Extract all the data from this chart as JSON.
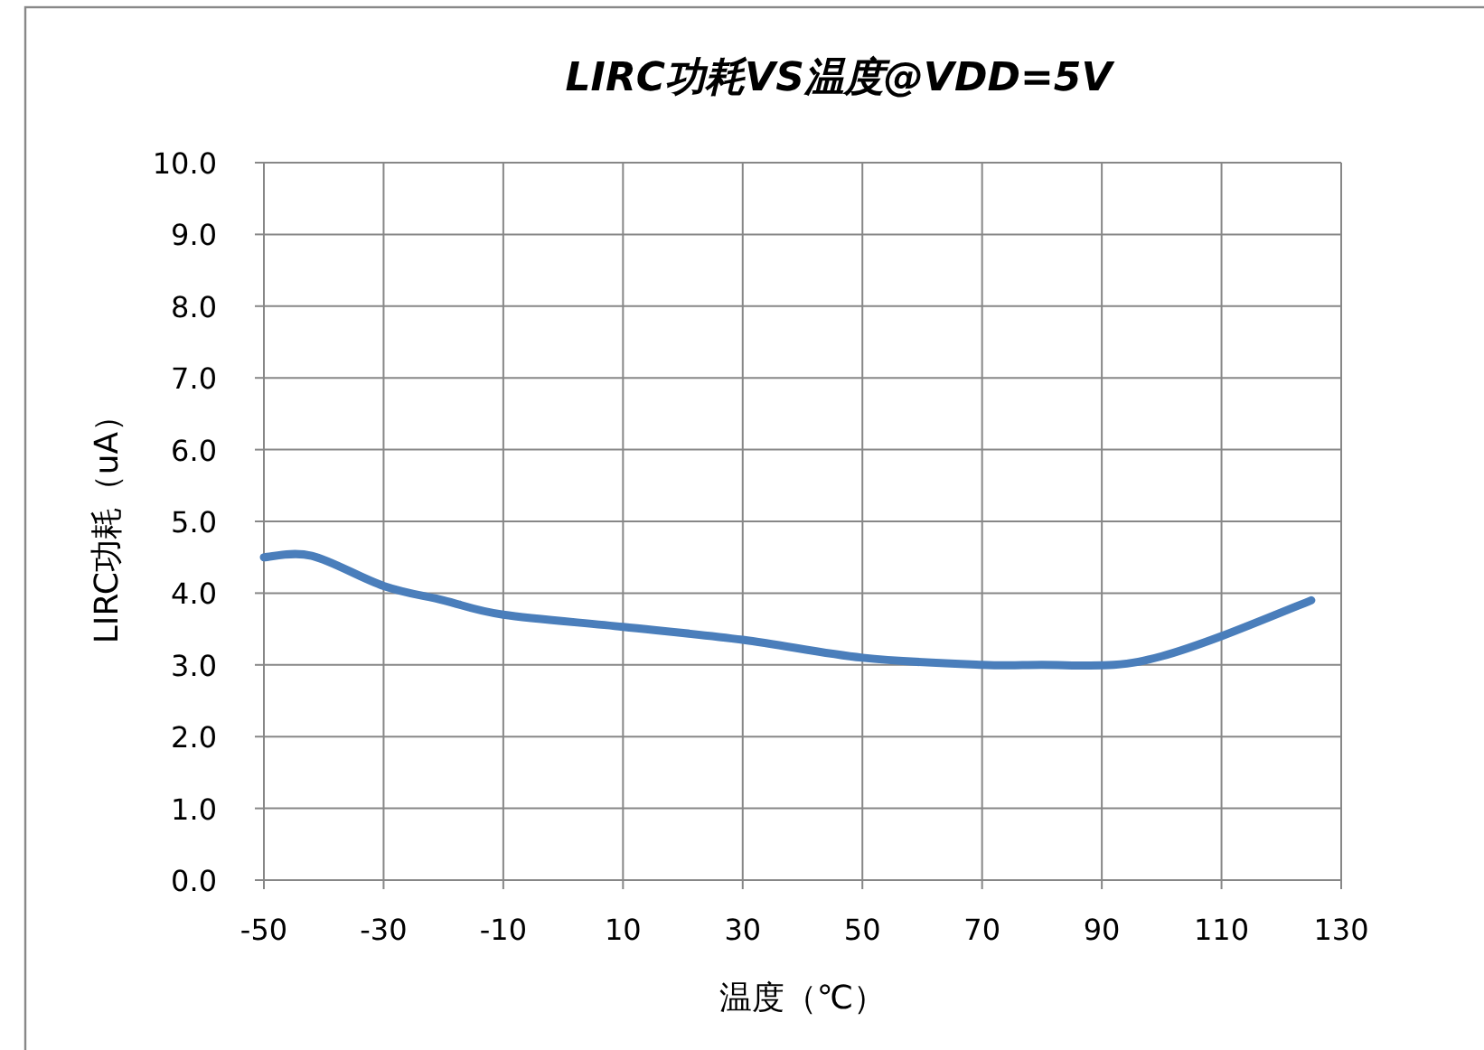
{
  "chart_data": {
    "type": "line",
    "title": "LIRC功耗VS温度@VDD=5V",
    "xlabel": "温度（℃）",
    "ylabel": "LIRC功耗（uA）",
    "x": [
      -50,
      -42,
      -30,
      -20,
      -10,
      10,
      30,
      50,
      70,
      80,
      92,
      100,
      110,
      125
    ],
    "series": [
      {
        "color": "#4a7ebb",
        "values": [
          4.5,
          4.52,
          4.1,
          3.9,
          3.7,
          3.53,
          3.35,
          3.1,
          3.0,
          3.0,
          3.0,
          3.12,
          3.4,
          3.9
        ]
      }
    ],
    "xlim": [
      -50,
      130
    ],
    "xticks": [
      -50,
      -30,
      -10,
      10,
      30,
      50,
      70,
      90,
      110,
      130
    ],
    "ylim": [
      0,
      10
    ],
    "yticks": [
      {
        "value": 0,
        "label": "0.0"
      },
      {
        "value": 1,
        "label": "1.0"
      },
      {
        "value": 2,
        "label": "2.0"
      },
      {
        "value": 3,
        "label": "3.0"
      },
      {
        "value": 4,
        "label": "4.0"
      },
      {
        "value": 5,
        "label": "5.0"
      },
      {
        "value": 6,
        "label": "6.0"
      },
      {
        "value": 7,
        "label": "7.0"
      },
      {
        "value": 8,
        "label": "8.0"
      },
      {
        "value": 9,
        "label": "9.0"
      },
      {
        "value": 10,
        "label": "10.0"
      }
    ],
    "grid": true,
    "marker": "none",
    "line_style": "solid"
  }
}
